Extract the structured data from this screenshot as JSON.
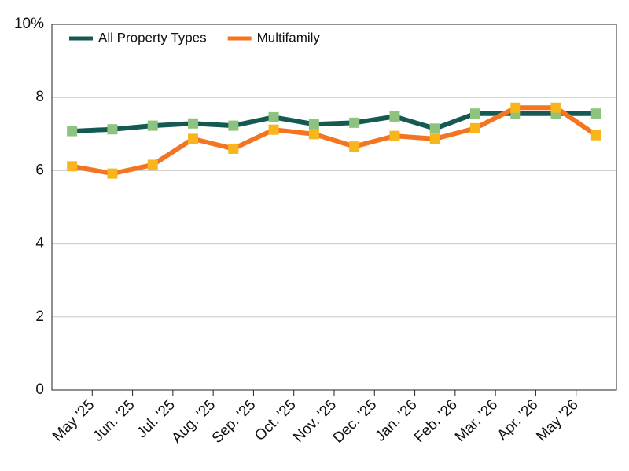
{
  "chart_data": {
    "type": "line",
    "categories": [
      "May '25",
      "Jun. '25",
      "Jul. '25",
      "Aug. '25",
      "Sep. '25",
      "Oct. '25",
      "Nov. '25",
      "Dec. '25",
      "Jan. '26",
      "Feb. '26",
      "Mar. '26",
      "Apr. '26",
      "May '26",
      null
    ],
    "series": [
      {
        "name": "All Property Types",
        "color": "#155a52",
        "marker_color": "#8dc37f",
        "values": [
          7.08,
          7.13,
          7.23,
          7.29,
          7.23,
          7.46,
          7.27,
          7.31,
          7.48,
          7.15,
          7.56,
          7.56,
          7.56,
          7.56
        ]
      },
      {
        "name": "Multifamily",
        "color": "#f47521",
        "marker_color": "#f9b51c",
        "values": [
          6.12,
          5.92,
          6.16,
          6.87,
          6.6,
          7.12,
          7.0,
          6.66,
          6.95,
          6.87,
          7.16,
          7.72,
          7.72,
          6.97
        ]
      }
    ],
    "ylim": [
      0,
      10
    ],
    "yticks": [
      0,
      2,
      4,
      6,
      8,
      {
        "value": 10,
        "label": "10%"
      }
    ],
    "grid": true,
    "legend": "top-left"
  }
}
